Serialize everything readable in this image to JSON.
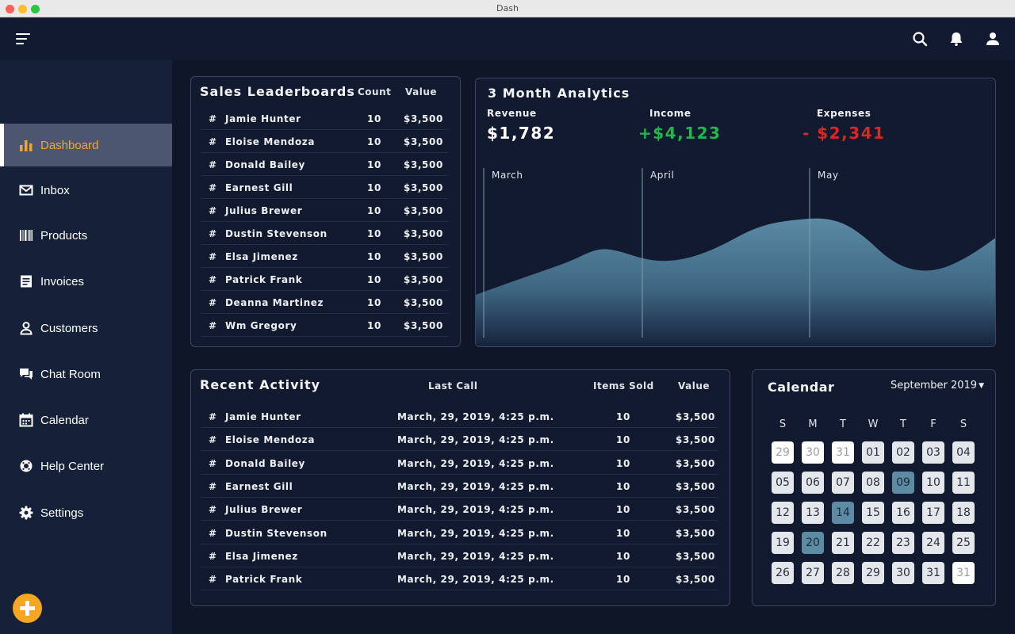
{
  "window": {
    "title": "Dash"
  },
  "topbar": {
    "icons": [
      "menu-icon",
      "search-icon",
      "bell-icon",
      "user-icon"
    ]
  },
  "sidebar": {
    "items": [
      {
        "label": "Dashboard",
        "icon": "bar-chart-icon",
        "active": true
      },
      {
        "label": "Inbox",
        "icon": "mail-icon"
      },
      {
        "label": "Products",
        "icon": "barcode-icon"
      },
      {
        "label": "Invoices",
        "icon": "invoice-icon"
      },
      {
        "label": "Customers",
        "icon": "person-icon"
      },
      {
        "label": "Chat Room",
        "icon": "chat-icon"
      },
      {
        "label": "Calendar",
        "icon": "calendar-icon"
      },
      {
        "label": "Help Center",
        "icon": "lifebuoy-icon"
      },
      {
        "label": "Settings",
        "icon": "gear-icon"
      }
    ],
    "fab_icon": "plus-icon"
  },
  "leaderboard": {
    "title": "Sales Leaderboards",
    "headers": {
      "count": "Count",
      "value": "Value"
    },
    "rows": [
      {
        "hash": "#",
        "name": "Jamie Hunter",
        "count": "10",
        "value": "$3,500"
      },
      {
        "hash": "#",
        "name": "Eloise Mendoza",
        "count": "10",
        "value": "$3,500"
      },
      {
        "hash": "#",
        "name": "Donald Bailey",
        "count": "10",
        "value": "$3,500"
      },
      {
        "hash": "#",
        "name": "Earnest Gill",
        "count": "10",
        "value": "$3,500"
      },
      {
        "hash": "#",
        "name": "Julius Brewer",
        "count": "10",
        "value": "$3,500"
      },
      {
        "hash": "#",
        "name": "Dustin Stevenson",
        "count": "10",
        "value": "$3,500"
      },
      {
        "hash": "#",
        "name": "Elsa Jimenez",
        "count": "10",
        "value": "$3,500"
      },
      {
        "hash": "#",
        "name": "Patrick Frank",
        "count": "10",
        "value": "$3,500"
      },
      {
        "hash": "#",
        "name": "Deanna Martinez",
        "count": "10",
        "value": "$3,500"
      },
      {
        "hash": "#",
        "name": "Wm Gregory",
        "count": "10",
        "value": "$3,500"
      }
    ]
  },
  "analytics": {
    "title": "3 Month Analytics",
    "metrics": {
      "revenue": {
        "label": "Revenue",
        "value": "$1,782"
      },
      "income": {
        "label": "Income",
        "value": "+$4,123"
      },
      "expenses": {
        "label": "Expenses",
        "value": "- $2,341"
      }
    },
    "months": [
      "March",
      "April",
      "May"
    ],
    "colors": {
      "income": "#1fb84a",
      "expenses": "#e02424",
      "area": "#5b8aa4"
    }
  },
  "activity": {
    "title": "Recent Activity",
    "headers": {
      "last_call": "Last Call",
      "items_sold": "Items Sold",
      "value": "Value"
    },
    "rows": [
      {
        "hash": "#",
        "name": "Jamie Hunter",
        "last_call": "March, 29, 2019, 4:25 p.m.",
        "items": "10",
        "value": "$3,500"
      },
      {
        "hash": "#",
        "name": "Eloise Mendoza",
        "last_call": "March, 29, 2019, 4:25 p.m.",
        "items": "10",
        "value": "$3,500"
      },
      {
        "hash": "#",
        "name": "Donald Bailey",
        "last_call": "March, 29, 2019, 4:25 p.m.",
        "items": "10",
        "value": "$3,500"
      },
      {
        "hash": "#",
        "name": "Earnest Gill",
        "last_call": "March, 29, 2019, 4:25 p.m.",
        "items": "10",
        "value": "$3,500"
      },
      {
        "hash": "#",
        "name": "Julius Brewer",
        "last_call": "March, 29, 2019, 4:25 p.m.",
        "items": "10",
        "value": "$3,500"
      },
      {
        "hash": "#",
        "name": "Dustin Stevenson",
        "last_call": "March, 29, 2019, 4:25 p.m.",
        "items": "10",
        "value": "$3,500"
      },
      {
        "hash": "#",
        "name": "Elsa Jimenez",
        "last_call": "March, 29, 2019, 4:25 p.m.",
        "items": "10",
        "value": "$3,500"
      },
      {
        "hash": "#",
        "name": "Patrick Frank",
        "last_call": "March, 29, 2019, 4:25 p.m.",
        "items": "10",
        "value": "$3,500"
      }
    ]
  },
  "calendar": {
    "title": "Calendar",
    "month": "September 2019",
    "weekdays": [
      "S",
      "M",
      "T",
      "W",
      "T",
      "F",
      "S"
    ],
    "weeks": [
      [
        {
          "d": "29",
          "o": true
        },
        {
          "d": "30",
          "o": true
        },
        {
          "d": "31",
          "o": true
        },
        {
          "d": "01"
        },
        {
          "d": "02"
        },
        {
          "d": "03"
        },
        {
          "d": "04"
        }
      ],
      [
        {
          "d": "05"
        },
        {
          "d": "06"
        },
        {
          "d": "07"
        },
        {
          "d": "08"
        },
        {
          "d": "09",
          "s": true
        },
        {
          "d": "10"
        },
        {
          "d": "11"
        }
      ],
      [
        {
          "d": "12"
        },
        {
          "d": "13"
        },
        {
          "d": "14",
          "s": true
        },
        {
          "d": "15"
        },
        {
          "d": "16"
        },
        {
          "d": "17"
        },
        {
          "d": "18"
        }
      ],
      [
        {
          "d": "19"
        },
        {
          "d": "20",
          "s": true
        },
        {
          "d": "21"
        },
        {
          "d": "22"
        },
        {
          "d": "23"
        },
        {
          "d": "24"
        },
        {
          "d": "25"
        }
      ],
      [
        {
          "d": "26"
        },
        {
          "d": "27"
        },
        {
          "d": "28"
        },
        {
          "d": "29"
        },
        {
          "d": "30"
        },
        {
          "d": "31"
        },
        {
          "d": "31",
          "o": true
        }
      ]
    ],
    "colors": {
      "selected": "#5c8ba3"
    }
  }
}
